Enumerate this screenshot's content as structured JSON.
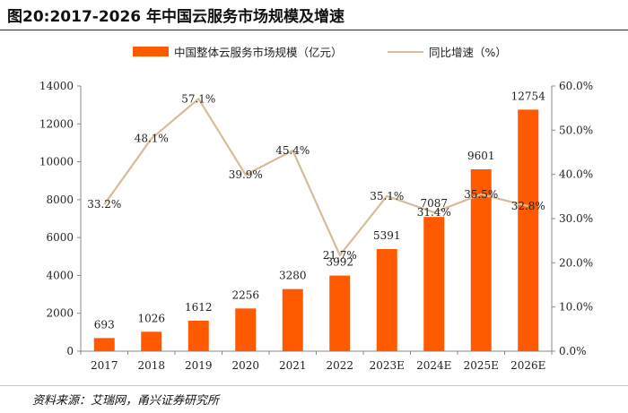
{
  "title": "图20:2017-2026 年中国云服务市场规模及增速",
  "source": "资料来源：艾瑞网，甬兴证券研究所",
  "chart_data": {
    "type": "bar+line",
    "categories": [
      "2017",
      "2018",
      "2019",
      "2020",
      "2021",
      "2022",
      "2023E",
      "2024E",
      "2025E",
      "2026E"
    ],
    "series": [
      {
        "name": "中国整体云服务市场规模（亿元）",
        "type": "bar",
        "axis": "left",
        "values": [
          693,
          1026,
          1612,
          2256,
          3280,
          3992,
          5391,
          7087,
          9601,
          12754
        ],
        "labels": [
          "693",
          "1026",
          "1612",
          "2256",
          "3280",
          "3992",
          "5391",
          "7087",
          "9601",
          "12754"
        ]
      },
      {
        "name": "同比增速（%）",
        "type": "line",
        "axis": "right",
        "values": [
          33.2,
          48.1,
          57.1,
          39.9,
          45.4,
          21.7,
          35.1,
          31.4,
          35.5,
          32.8
        ],
        "labels": [
          "33.2%",
          "48.1%",
          "57.1%",
          "39.9%",
          "45.4%",
          "21.7%",
          "35.1%",
          "31.4%",
          "35.5%",
          "32.8%"
        ]
      }
    ],
    "y_left": {
      "min": 0,
      "max": 14000,
      "ticks": [
        "0",
        "2000",
        "4000",
        "6000",
        "8000",
        "10000",
        "12000",
        "14000"
      ]
    },
    "y_right": {
      "min": 0,
      "max": 60,
      "ticks": [
        "0.0%",
        "10.0%",
        "20.0%",
        "30.0%",
        "40.0%",
        "50.0%",
        "60.0%"
      ]
    },
    "colors": {
      "bar": "#ff5a00",
      "line": "#d6bc98"
    },
    "legend_position": "top-center",
    "grid": false
  }
}
